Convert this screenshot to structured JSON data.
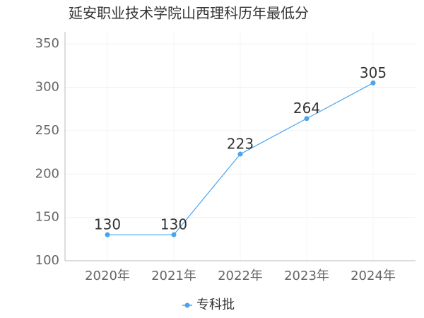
{
  "chart_data": {
    "type": "line",
    "title": "延安职业技术学院山西理科历年最低分",
    "categories": [
      "2020年",
      "2021年",
      "2022年",
      "2023年",
      "2024年"
    ],
    "series": [
      {
        "name": "专科批",
        "color": "#4aa3ef",
        "values": [
          130,
          130,
          223,
          264,
          305
        ]
      }
    ],
    "ylim": [
      100,
      364
    ],
    "yticks": [
      100,
      150,
      200,
      250,
      300,
      350
    ],
    "grid": true,
    "legend": "bottom"
  }
}
